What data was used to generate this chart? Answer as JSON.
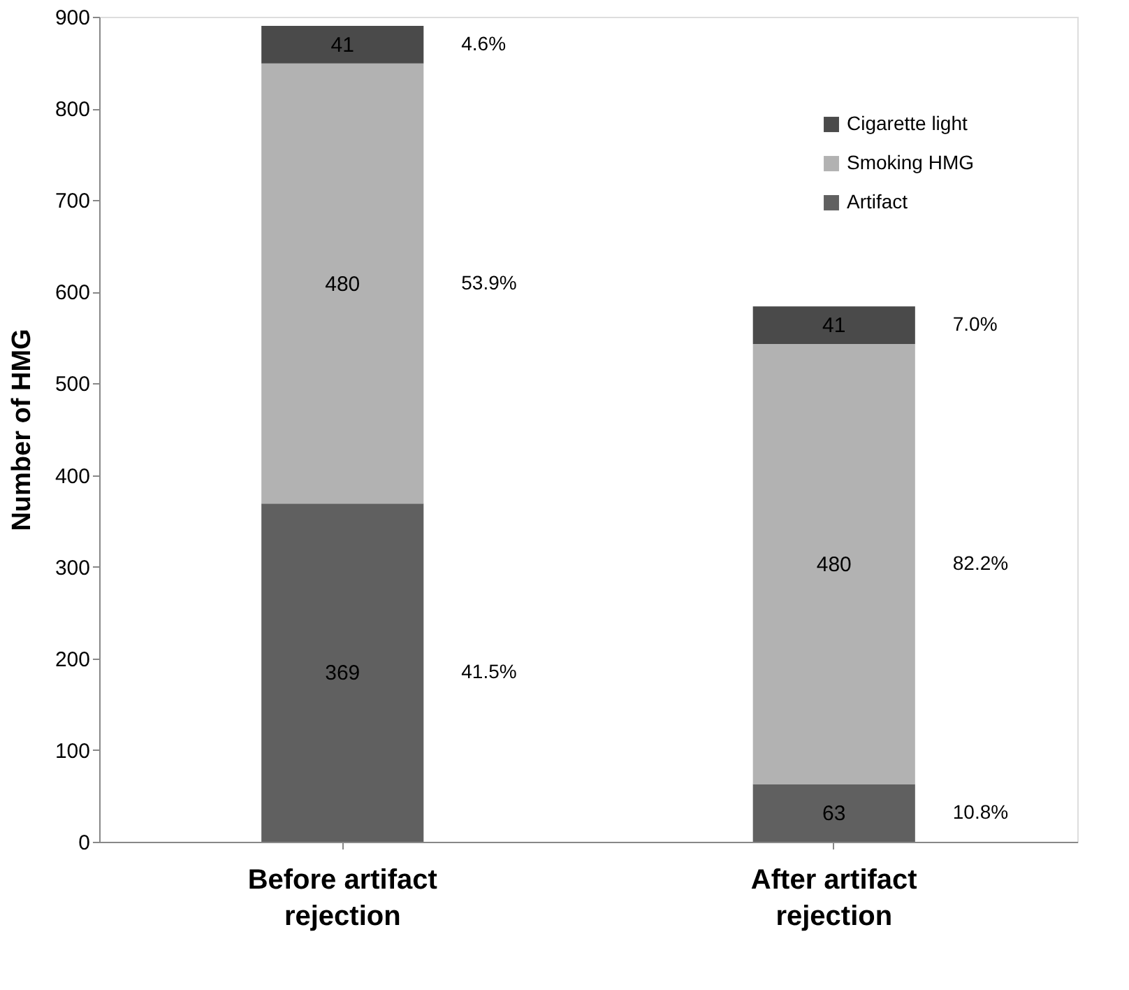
{
  "chart_data": {
    "type": "bar",
    "stacked": true,
    "ylabel": "Number of HMG",
    "categories": [
      "Before artifact rejection",
      "After artifact rejection"
    ],
    "series": [
      {
        "name": "Artifact",
        "color": "#606060",
        "values": [
          369,
          63
        ]
      },
      {
        "name": "Smoking  HMG",
        "color": "#b2b2b2",
        "values": [
          480,
          480
        ]
      },
      {
        "name": "Cigarette light",
        "color": "#4a4a4a",
        "values": [
          41,
          41
        ]
      }
    ],
    "data_labels": true,
    "ylim": [
      0,
      900
    ],
    "yticks": [
      0,
      100,
      200,
      300,
      400,
      500,
      600,
      700,
      800,
      900
    ],
    "grid": false,
    "legend": "top right",
    "annotations": [
      "41.5%",
      "53.9%",
      "4.6%",
      "10.8%",
      "82.2%",
      "7.0%"
    ]
  }
}
